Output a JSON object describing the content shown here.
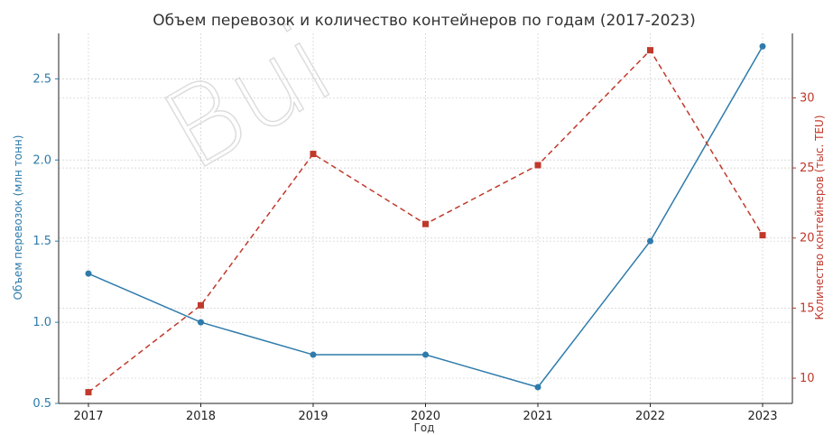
{
  "chart_data": {
    "type": "line",
    "title": "Объем перевозок и количество контейнеров по годам (2017-2023)",
    "xlabel": "Год",
    "x": [
      2017,
      2018,
      2019,
      2020,
      2021,
      2022,
      2023
    ],
    "ylabel_left": "Объем перевозок (млн тонн)",
    "ylabel_right": "Количество контейнеров (тыс. TEU)",
    "ylim_left": [
      0.5,
      2.78
    ],
    "ylim_right": [
      8.2,
      34.6
    ],
    "yticks_left": [
      "0.5",
      "1.0",
      "1.5",
      "2.0",
      "2.5"
    ],
    "yticks_right": [
      "10",
      "15",
      "20",
      "25",
      "30"
    ],
    "grid": true,
    "series": [
      {
        "axis": "left",
        "color": "#2e7bab",
        "marker": "circle",
        "style": "solid",
        "values": [
          1.3,
          1.0,
          0.8,
          0.8,
          0.6,
          1.5,
          2.7
        ]
      },
      {
        "axis": "right",
        "color": "#c0392b",
        "marker": "square",
        "style": "dashed",
        "values": [
          9.0,
          15.2,
          26.0,
          21.0,
          25.2,
          33.4,
          20.2
        ]
      }
    ],
    "watermark": "Bui"
  }
}
